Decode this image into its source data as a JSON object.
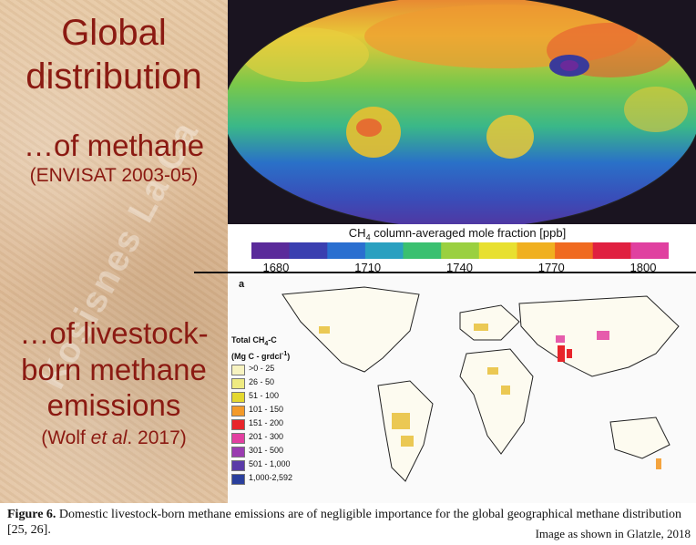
{
  "left_panel": {
    "title_line1": "Global",
    "title_line2": "distribution",
    "methane_line": "…of methane",
    "methane_source": "(ENVISAT 2003-05)",
    "livestock_line1": "…of livestock-",
    "livestock_line2": "born methane",
    "livestock_line3": "emissions",
    "livestock_source_pre": "(Wolf ",
    "livestock_source_italic": "et al",
    "livestock_source_post": ". 2017)",
    "watermark": "Kosisnes La Ca"
  },
  "methane_map": {
    "scale_title_pre": "CH",
    "scale_title_sub": "4",
    "scale_title_post": " column-averaged mole fraction [ppb]",
    "scale_colors": [
      "#5a2a9a",
      "#3a3fb0",
      "#2a6fd0",
      "#2aa0c0",
      "#3ac070",
      "#9ad040",
      "#e8e030",
      "#f0b020",
      "#f06a20",
      "#e02040",
      "#e040a0"
    ],
    "tick_labels": [
      "1680",
      "1710",
      "1740",
      "1770",
      "1800"
    ]
  },
  "livestock_map": {
    "panel_label": "a",
    "legend_title_line1": "Total CH",
    "legend_title_sub": "4",
    "legend_title_post": "-C",
    "legend_title_line2": "(Mg C - grdcl",
    "legend_title_sup": "-1",
    "legend_title_end": ")",
    "legend": [
      {
        "label": ">0 - 25",
        "color": "#f7f3c0"
      },
      {
        "label": "26 - 50",
        "color": "#eeea80"
      },
      {
        "label": "51 - 100",
        "color": "#e4d830"
      },
      {
        "label": "101 - 150",
        "color": "#f39a2a"
      },
      {
        "label": "151 - 200",
        "color": "#e8242a"
      },
      {
        "label": "201 - 300",
        "color": "#e23fa0"
      },
      {
        "label": "301 - 500",
        "color": "#9a3cb0"
      },
      {
        "label": "501 - 1,000",
        "color": "#5a3aa8"
      },
      {
        "label": "1,000-2,592",
        "color": "#2a3f9c"
      }
    ]
  },
  "caption": {
    "figure_label": "Figure 6.",
    "text": " Domestic livestock-born methane emissions are of negligible importance for the global geographical methane distribution [25, 26].",
    "credit": "Image as shown in Glatzle, 2018"
  }
}
